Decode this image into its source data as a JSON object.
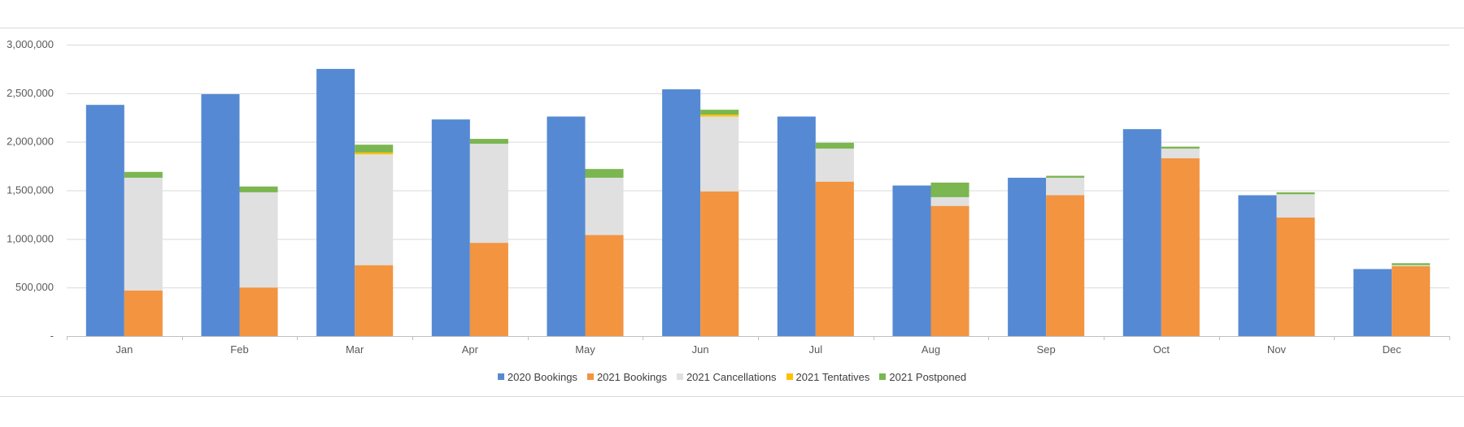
{
  "chart_data": {
    "type": "bar",
    "title": "",
    "xlabel": "",
    "ylabel": "",
    "ylim": [
      0,
      3000000
    ],
    "y_ticks": [
      0,
      500000,
      1000000,
      1500000,
      2000000,
      2500000,
      3000000
    ],
    "y_tick_labels": [
      "-",
      "500,000",
      "1,000,000",
      "1,500,000",
      "2,000,000",
      "2,500,000",
      "3,000,000"
    ],
    "categories": [
      "Jan",
      "Feb",
      "Mar",
      "Apr",
      "May",
      "Jun",
      "Jul",
      "Aug",
      "Sep",
      "Oct",
      "Nov",
      "Dec"
    ],
    "series": [
      {
        "name": "2020 Bookings",
        "color": "#5589d3",
        "stack": "2020",
        "values": [
          2380000,
          2490000,
          2750000,
          2230000,
          2260000,
          2540000,
          2260000,
          1550000,
          1630000,
          2130000,
          1450000,
          690000
        ]
      },
      {
        "name": "2021 Bookings",
        "color": "#f29440",
        "stack": "2021",
        "values": [
          470000,
          500000,
          730000,
          960000,
          1040000,
          1490000,
          1590000,
          1340000,
          1450000,
          1830000,
          1220000,
          720000
        ]
      },
      {
        "name": "2021 Cancellations",
        "color": "#e0e0e0",
        "stack": "2021",
        "values": [
          1160000,
          980000,
          1140000,
          1020000,
          590000,
          770000,
          340000,
          90000,
          180000,
          100000,
          240000,
          10000
        ]
      },
      {
        "name": "2021 Tentatives",
        "color": "#ffc000",
        "stack": "2021",
        "values": [
          0,
          0,
          20000,
          0,
          0,
          20000,
          0,
          0,
          0,
          0,
          0,
          0
        ]
      },
      {
        "name": "2021 Postponed",
        "color": "#7bb650",
        "stack": "2021",
        "values": [
          60000,
          60000,
          80000,
          50000,
          90000,
          50000,
          60000,
          150000,
          20000,
          20000,
          20000,
          20000
        ]
      }
    ],
    "grid": true,
    "legend_position": "bottom"
  }
}
